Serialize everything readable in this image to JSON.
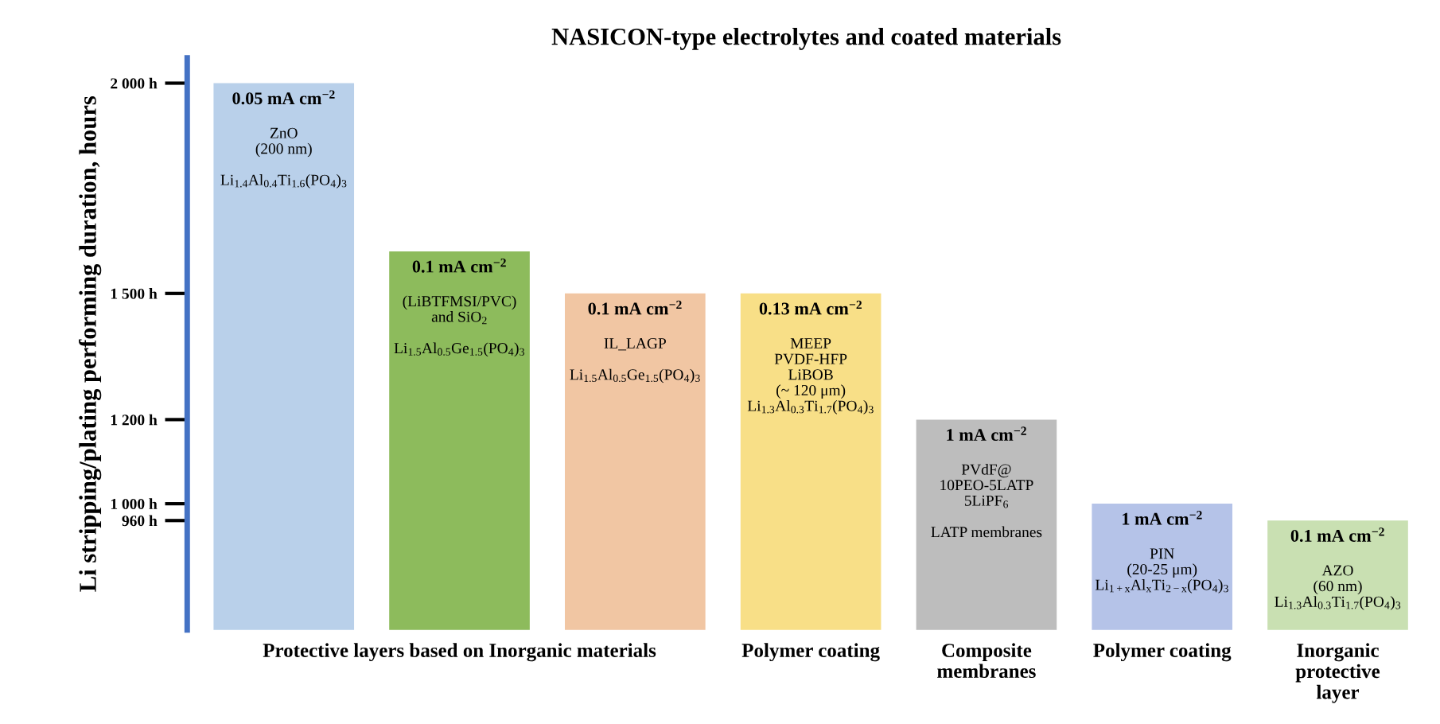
{
  "chart_data": {
    "type": "bar",
    "title": "NASICON-type electrolytes and coated materials",
    "ylabel": "Li stripping/plating performing duration, hours",
    "categories": [
      null,
      "Protective layers based on Inorganic materials",
      null,
      "Polymer coating",
      "Composite\nmembranes",
      "Polymer coating",
      "Inorganic\nprotective\nlayer"
    ],
    "values": [
      2000,
      1600,
      1500,
      1500,
      1200,
      1000,
      960
    ],
    "colors": [
      "#b9d0ea",
      "#8dbb5c",
      "#f1c6a3",
      "#f8df87",
      "#bdbdbd",
      "#b5c3e8",
      "#c9e0b2"
    ],
    "annotations": [
      "0.05 mA cm$^{−2}$\nZnO\n(200 nm)\n\nLi$_{1.4}$Al$_{0.4}$Ti$_{1.6}$(PO$_{4}$)$_{3}$",
      "0.1 mA cm$^{−2}$\n(LiBTFMSI/PVC)\nand SiO$_{2}$\n\nLi$_{1.5}$Al$_{0.5}$Ge$_{1.5}$(PO$_{4}$)$_{3}$",
      "0.1 mA cm$^{−2}$\nIL_LAGP\n\nLi$_{1.5}$Al$_{0.5}$Ge$_{1.5}$(PO$_{4}$)$_{3}$",
      "0.13 mA cm$^{−2}$\nMEEP\nPVDF-HFP\nLiBOB\n(~ 120 μm)\nLi$_{1.3}$Al$_{0.3}$Ti$_{1.7}$(PO$_{4}$)$_{3}$",
      "1 mA cm$^{−2}$\nPVdF@\n10PEO-5LATP\n5LiPF$_{6}$\n\nLATP membranes",
      "1 mA cm$^{−2}$\nPIN\n(20-25 μm)\nLi$_{1+x}$Al$_{x}$Ti$_{2−x}$(PO$_{4}$)$_{3}$",
      "0.1 mA cm$^{−2}$\nAZO\n(60 nm)\nLi$_{1.3}$Al$_{0.3}$Ti$_{1.7}$(PO$_{4}$)$_{3}$"
    ],
    "ylim": [
      700,
      2060
    ],
    "yticks": [
      {
        "value": 2000,
        "label": "2 000 h"
      },
      {
        "value": 1500,
        "label": "1 500 h"
      },
      {
        "value": 1200,
        "label": "1 200 h"
      },
      {
        "value": 1000,
        "label": "1 000 h"
      },
      {
        "value": 960,
        "label": "960 h"
      }
    ],
    "grid": false,
    "legend": false
  }
}
